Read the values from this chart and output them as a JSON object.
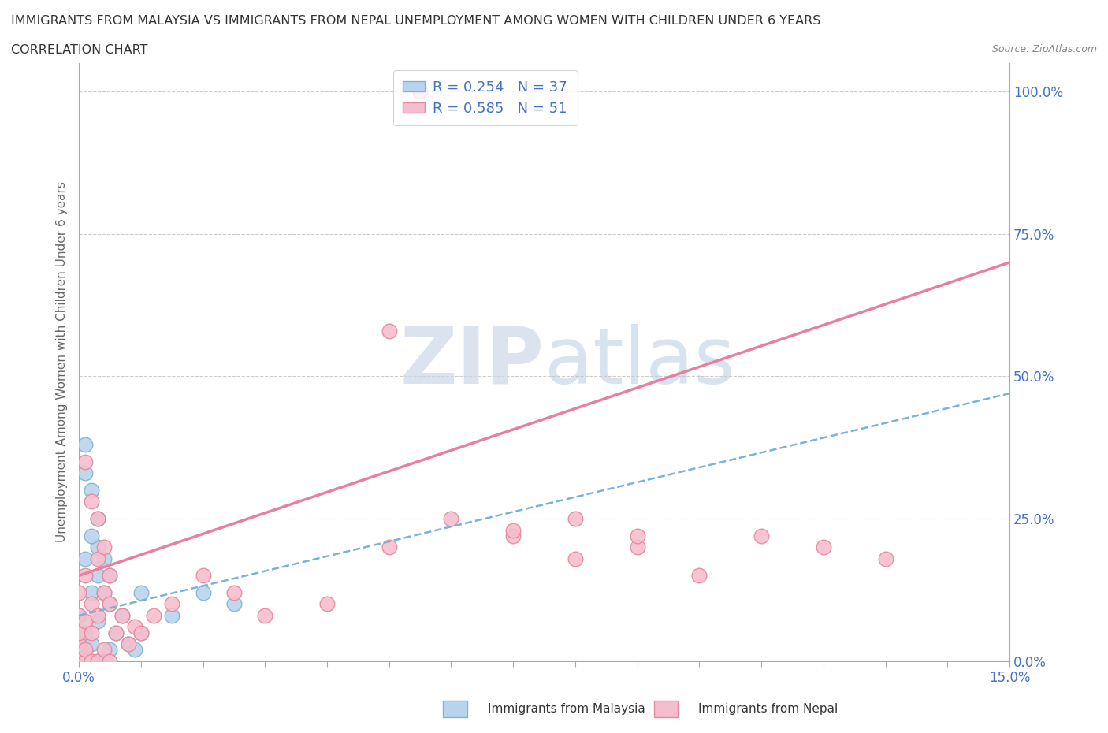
{
  "title_line1": "IMMIGRANTS FROM MALAYSIA VS IMMIGRANTS FROM NEPAL UNEMPLOYMENT AMONG WOMEN WITH CHILDREN UNDER 6 YEARS",
  "title_line2": "CORRELATION CHART",
  "source": "Source: ZipAtlas.com",
  "ylabel": "Unemployment Among Women with Children Under 6 years",
  "legend_label1": "Immigrants from Malaysia",
  "legend_label2": "Immigrants from Nepal",
  "R_malaysia": 0.254,
  "N_malaysia": 37,
  "R_nepal": 0.585,
  "N_nepal": 51,
  "color_malaysia_fill": "#b8d4ed",
  "color_malaysia_edge": "#7fb3d9",
  "color_nepal_fill": "#f5bece",
  "color_nepal_edge": "#e8889a",
  "color_trendline_malaysia": "#7ab3d9",
  "color_trendline_nepal": "#e87fa0",
  "color_axis_text": "#4472c4",
  "color_grid": "#cccccc",
  "color_title": "#333333",
  "color_watermark": "#ccd8e8",
  "watermark_zip": "ZIP",
  "watermark_atlas": "atlas",
  "xmin": 0.0,
  "xmax": 0.15,
  "ymin": 0.0,
  "ymax": 1.05,
  "yticks": [
    0.0,
    0.25,
    0.5,
    0.75,
    1.0
  ],
  "ytick_labels": [
    "0.0%",
    "25.0%",
    "50.0%",
    "75.0%",
    "100.0%"
  ],
  "nepal_trendline_x0": 0.0,
  "nepal_trendline_y0": 0.15,
  "nepal_trendline_x1": 0.15,
  "nepal_trendline_y1": 0.7,
  "malaysia_trendline_x0": 0.0,
  "malaysia_trendline_y0": 0.08,
  "malaysia_trendline_x1": 0.15,
  "malaysia_trendline_y1": 0.47,
  "malaysia_points_x": [
    0.0,
    0.0,
    0.0,
    0.0,
    0.0,
    0.0,
    0.001,
    0.001,
    0.001,
    0.001,
    0.002,
    0.002,
    0.002,
    0.003,
    0.003,
    0.003,
    0.004,
    0.004,
    0.005,
    0.005,
    0.006,
    0.007,
    0.008,
    0.009,
    0.01,
    0.01,
    0.015,
    0.02,
    0.025,
    0.003,
    0.004,
    0.005,
    0.002,
    0.001,
    0.001,
    0.003,
    0.002
  ],
  "malaysia_points_y": [
    0.0,
    0.01,
    0.02,
    0.03,
    0.05,
    0.08,
    0.0,
    0.02,
    0.05,
    0.18,
    0.0,
    0.03,
    0.12,
    0.0,
    0.07,
    0.15,
    0.0,
    0.12,
    0.02,
    0.1,
    0.05,
    0.08,
    0.03,
    0.02,
    0.05,
    0.12,
    0.08,
    0.12,
    0.1,
    0.2,
    0.18,
    0.15,
    0.22,
    0.33,
    0.38,
    0.25,
    0.3
  ],
  "nepal_points_x": [
    0.0,
    0.0,
    0.0,
    0.0,
    0.0,
    0.0,
    0.0,
    0.001,
    0.001,
    0.001,
    0.001,
    0.002,
    0.002,
    0.002,
    0.003,
    0.003,
    0.003,
    0.004,
    0.004,
    0.005,
    0.005,
    0.006,
    0.007,
    0.008,
    0.009,
    0.01,
    0.012,
    0.015,
    0.02,
    0.025,
    0.03,
    0.04,
    0.05,
    0.055,
    0.06,
    0.07,
    0.08,
    0.09,
    0.1,
    0.11,
    0.12,
    0.13,
    0.003,
    0.004,
    0.005,
    0.002,
    0.001,
    0.07,
    0.08,
    0.09,
    0.05
  ],
  "nepal_points_y": [
    0.0,
    0.01,
    0.02,
    0.03,
    0.05,
    0.08,
    0.12,
    0.0,
    0.02,
    0.07,
    0.15,
    0.0,
    0.05,
    0.1,
    0.0,
    0.08,
    0.18,
    0.02,
    0.12,
    0.0,
    0.1,
    0.05,
    0.08,
    0.03,
    0.06,
    0.05,
    0.08,
    0.1,
    0.15,
    0.12,
    0.08,
    0.1,
    0.2,
    1.0,
    0.25,
    0.22,
    0.18,
    0.2,
    0.15,
    0.22,
    0.2,
    0.18,
    0.25,
    0.2,
    0.15,
    0.28,
    0.35,
    0.23,
    0.25,
    0.22,
    0.58
  ]
}
